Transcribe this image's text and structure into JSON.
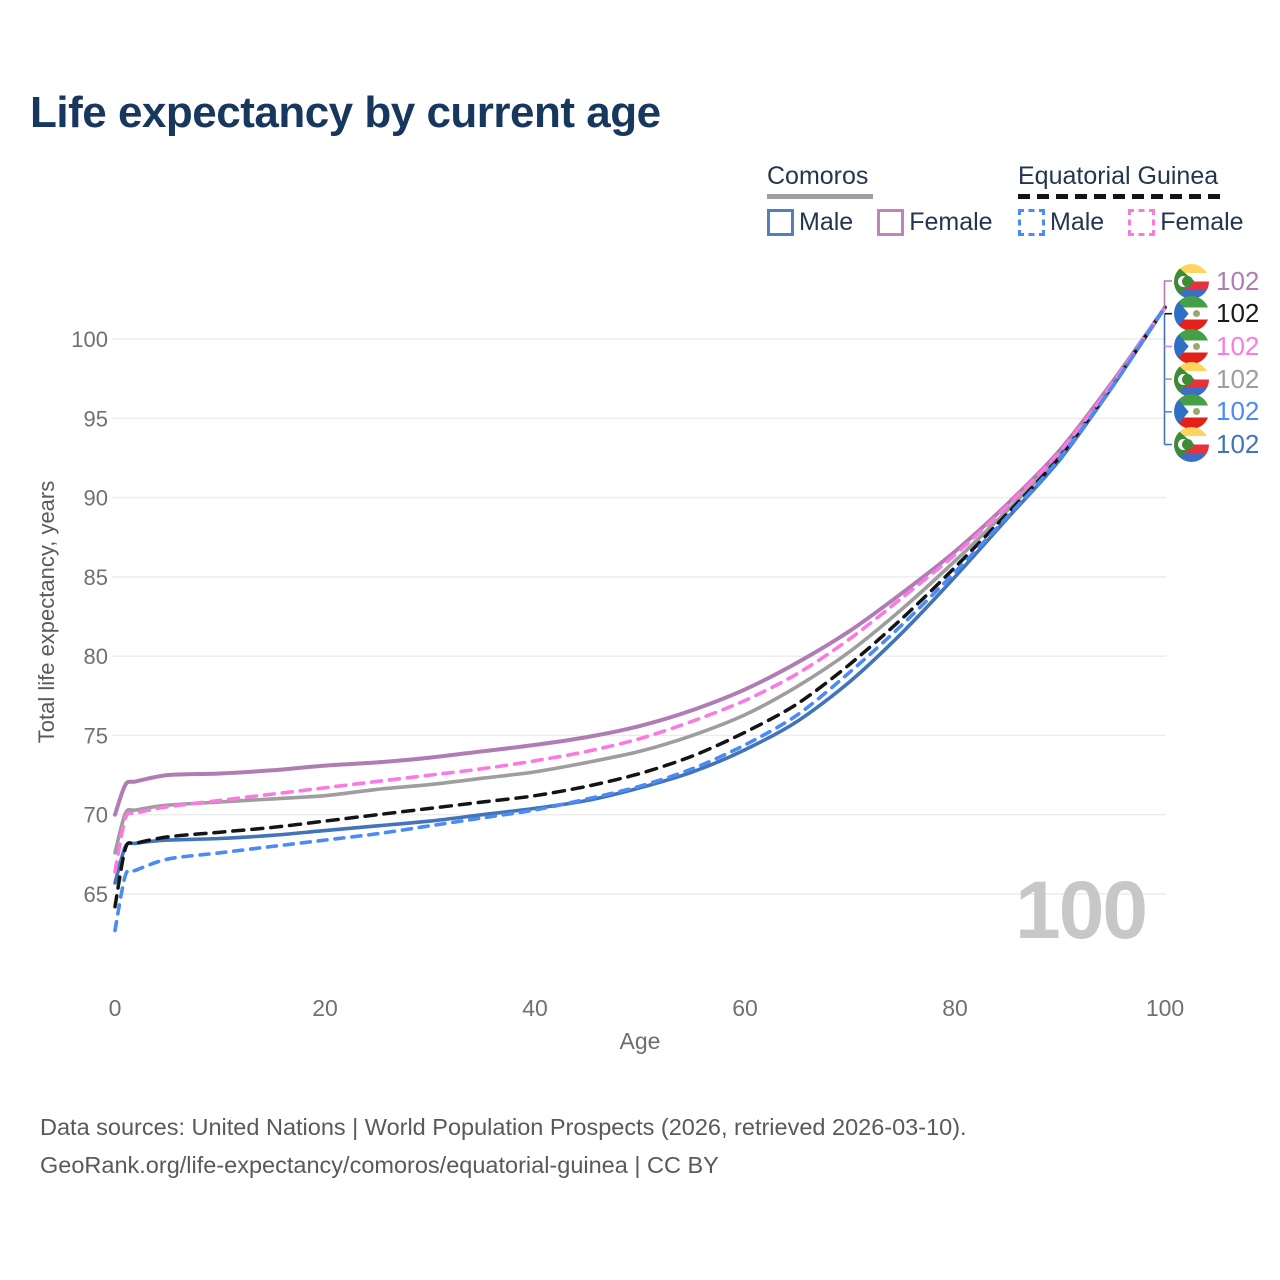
{
  "title": "Life expectancy by current age",
  "legend": {
    "comoros": {
      "label": "Comoros",
      "male_label": "Male",
      "female_label": "Female"
    },
    "equatorial_guinea": {
      "label": "Equatorial Guinea",
      "male_label": "Male",
      "female_label": "Female"
    }
  },
  "watermark": "100",
  "footer": {
    "line1": "Data sources: United Nations | World Population Prospects (2026, retrieved 2026-03-10).",
    "line2": "GeoRank.org/life-expectancy/comoros/equatorial-guinea | CC BY"
  },
  "colors": {
    "title_text": "#17375E",
    "legend_text": "#24364E",
    "grid": "#EBEBEB",
    "tick_text": "#707070",
    "watermark_text": "#C7C7C7",
    "footer_text": "#595959",
    "comoros_male": "#4374B9",
    "comoros_female": "#AF7DB4",
    "comoros_all": "#9E9E9E",
    "eq_guinea_male": "#4B8BF5",
    "eq_guinea_female": "#FB7AE1",
    "eq_guinea_all": "#141414"
  },
  "chart_data": {
    "type": "line",
    "title": "Life expectancy by current age",
    "xlabel": "Age",
    "ylabel": "Total life expectancy, years",
    "xlim": [
      0,
      100
    ],
    "ylim": [
      62,
      103
    ],
    "xticks": [
      0,
      20,
      40,
      60,
      80,
      100
    ],
    "yticks": [
      65,
      70,
      75,
      80,
      85,
      90,
      95,
      100
    ],
    "grid": "horizontal",
    "legend_position": "top-right",
    "hover_age": 100,
    "ages": [
      0,
      1,
      2,
      5,
      10,
      15,
      20,
      25,
      30,
      35,
      40,
      45,
      50,
      55,
      60,
      65,
      70,
      75,
      80,
      85,
      90,
      95,
      100
    ],
    "series": [
      {
        "id": "comoros_female",
        "name": "Comoros Female",
        "country": "Comoros",
        "sex": "Female",
        "style": "solid",
        "color": "#AF7DB4",
        "width": 4,
        "dash": null,
        "values": [
          70.0,
          71.9,
          72.1,
          72.5,
          72.6,
          72.8,
          73.1,
          73.3,
          73.6,
          74.0,
          74.4,
          74.9,
          75.6,
          76.6,
          77.9,
          79.6,
          81.6,
          84.0,
          86.6,
          89.6,
          93.0,
          97.3,
          102.0
        ]
      },
      {
        "id": "comoros_all",
        "name": "Comoros (both sexes)",
        "country": "Comoros",
        "sex": "Both",
        "style": "solid",
        "color": "#9E9E9E",
        "width": 3.6,
        "dash": null,
        "values": [
          67.6,
          70.1,
          70.3,
          70.6,
          70.8,
          71.0,
          71.2,
          71.6,
          71.9,
          72.3,
          72.7,
          73.3,
          74.0,
          75.0,
          76.3,
          78.1,
          80.3,
          83.0,
          86.0,
          89.2,
          92.7,
          97.1,
          102.0
        ]
      },
      {
        "id": "comoros_male",
        "name": "Comoros Male",
        "country": "Comoros",
        "sex": "Male",
        "style": "solid",
        "color": "#4374B9",
        "width": 3.6,
        "dash": null,
        "values": [
          65.7,
          68.0,
          68.2,
          68.4,
          68.5,
          68.7,
          69.0,
          69.3,
          69.6,
          70.0,
          70.4,
          70.9,
          71.7,
          72.7,
          74.1,
          75.9,
          78.4,
          81.5,
          85.0,
          88.7,
          92.4,
          97.0,
          102.0
        ]
      },
      {
        "id": "eq_guinea_all",
        "name": "Equatorial Guinea (both sexes)",
        "country": "Equatorial Guinea",
        "sex": "Both",
        "style": "dashed",
        "color": "#141414",
        "width": 3.5,
        "dash": "11 8",
        "values": [
          64.2,
          67.9,
          68.2,
          68.6,
          68.9,
          69.2,
          69.6,
          70.0,
          70.4,
          70.8,
          71.2,
          71.8,
          72.6,
          73.7,
          75.2,
          77.0,
          79.5,
          82.4,
          85.6,
          89.0,
          92.6,
          97.1,
          102.0
        ]
      },
      {
        "id": "eq_guinea_female",
        "name": "Equatorial Guinea Female",
        "country": "Equatorial Guinea",
        "sex": "Female",
        "style": "dashed",
        "color": "#FB7AE1",
        "width": 3.6,
        "dash": "10 8",
        "values": [
          66.4,
          69.8,
          70.1,
          70.5,
          70.9,
          71.3,
          71.7,
          72.1,
          72.5,
          72.9,
          73.4,
          74.0,
          74.8,
          75.9,
          77.2,
          78.9,
          81.1,
          83.7,
          86.4,
          89.5,
          92.9,
          97.2,
          102.0
        ]
      },
      {
        "id": "eq_guinea_male",
        "name": "Equatorial Guinea Male",
        "country": "Equatorial Guinea",
        "sex": "Male",
        "style": "dashed",
        "color": "#4B8BF5",
        "width": 3.6,
        "dash": "9 8",
        "values": [
          62.7,
          66.2,
          66.5,
          67.2,
          67.6,
          68.0,
          68.4,
          68.8,
          69.3,
          69.8,
          70.3,
          71.0,
          71.8,
          72.9,
          74.4,
          76.3,
          79.0,
          82.0,
          85.3,
          88.8,
          92.5,
          97.0,
          102.0
        ]
      }
    ],
    "end_labels": [
      {
        "flag": "comoros",
        "value": "102",
        "color": "#AF7DB4",
        "series": "comoros_female"
      },
      {
        "flag": "eq_guinea",
        "value": "102",
        "color": "#1A1A1A",
        "series": "eq_guinea_all"
      },
      {
        "flag": "eq_guinea",
        "value": "102",
        "color": "#FB7AE1",
        "series": "eq_guinea_female"
      },
      {
        "flag": "comoros",
        "value": "102",
        "color": "#9E9E9E",
        "series": "comoros_all"
      },
      {
        "flag": "eq_guinea",
        "value": "102",
        "color": "#4B8BF5",
        "series": "eq_guinea_male"
      },
      {
        "flag": "comoros",
        "value": "102",
        "color": "#4374B9",
        "series": "comoros_male"
      }
    ]
  }
}
